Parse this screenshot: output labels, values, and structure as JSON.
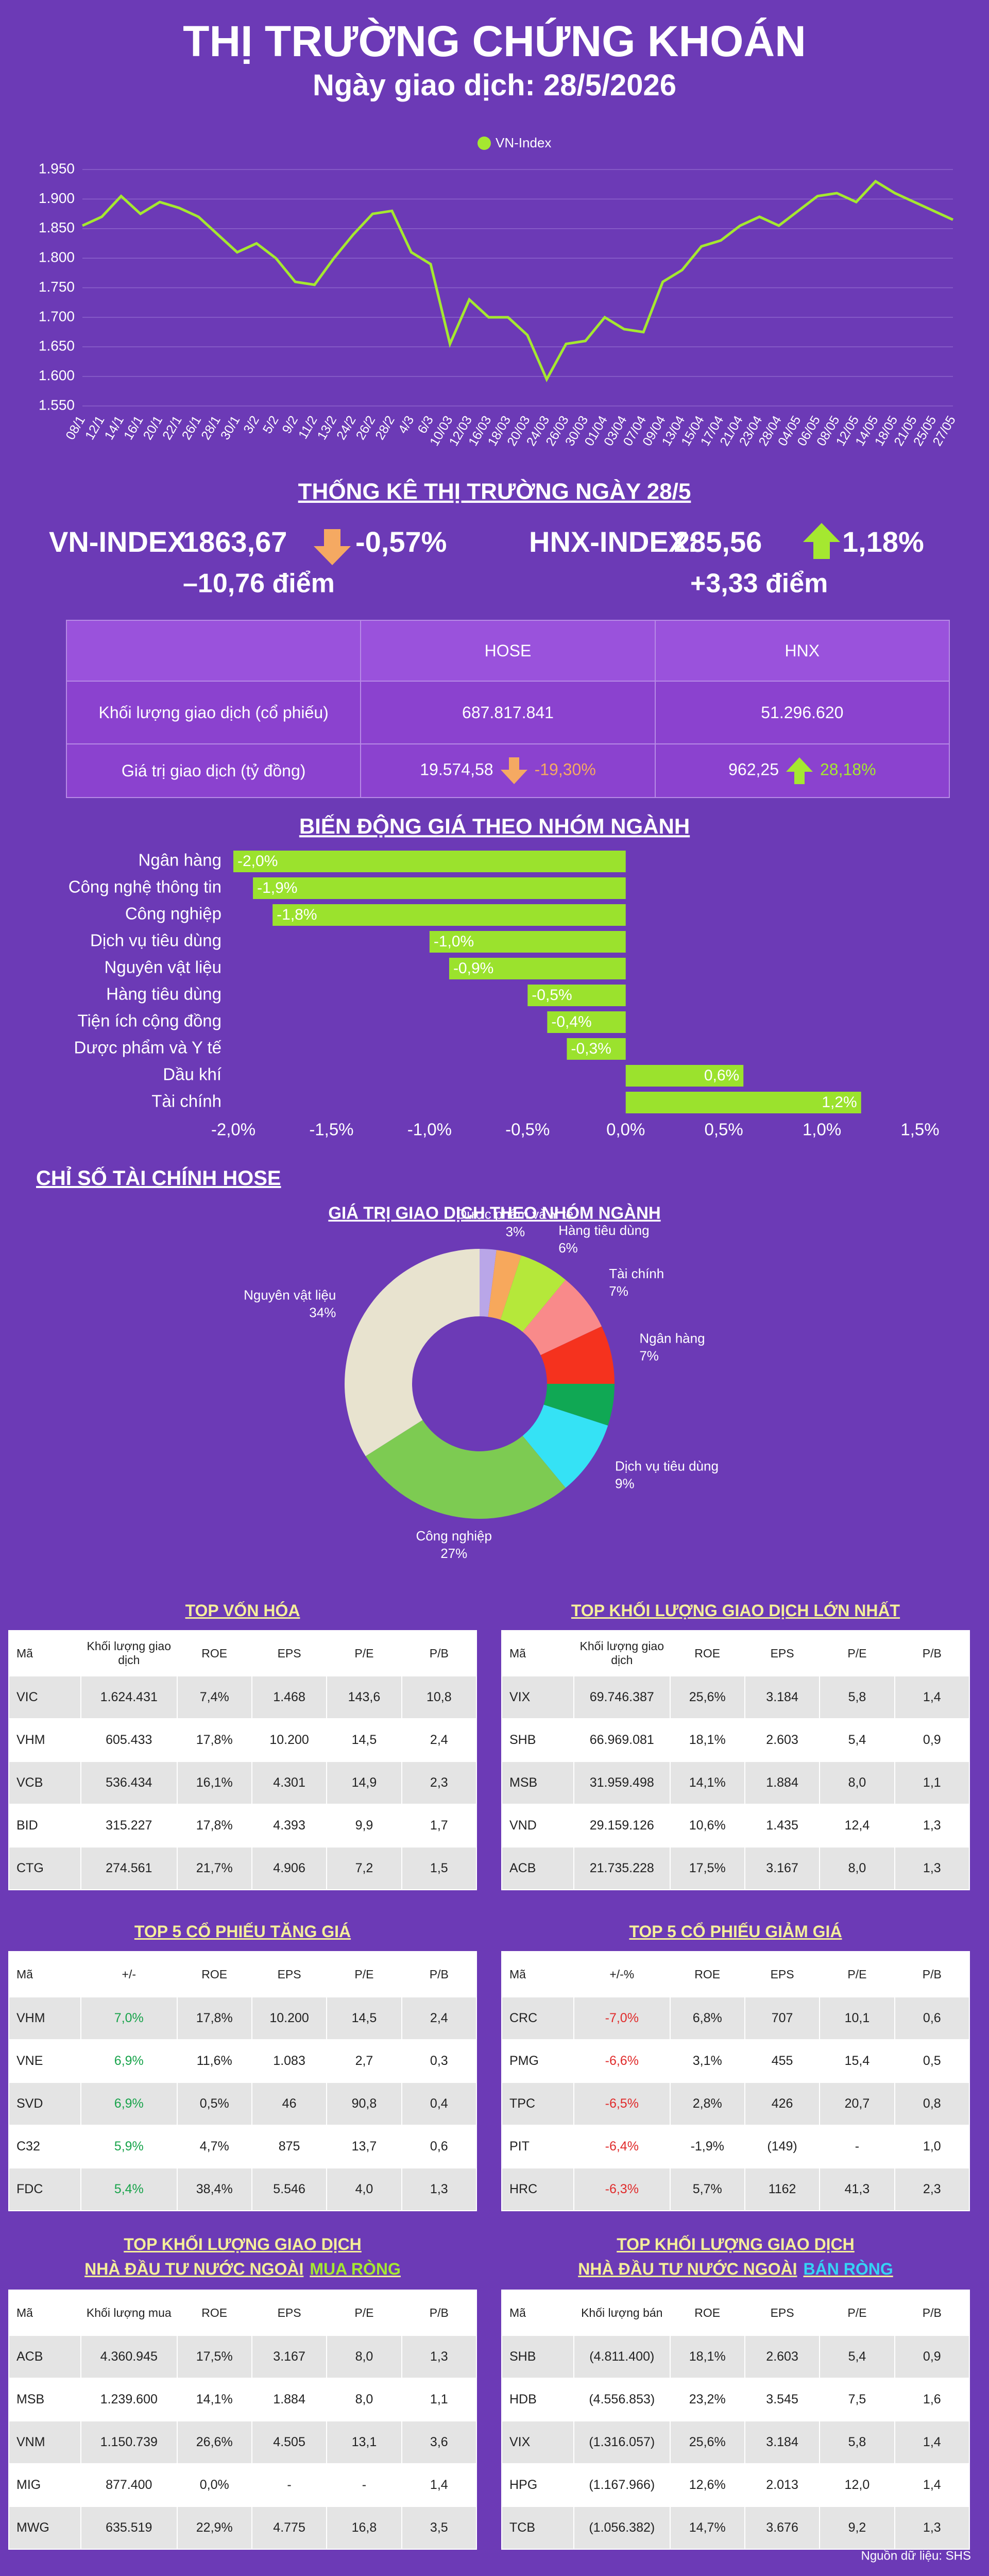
{
  "header": {
    "title": "THỊ TRƯỜNG CHỨNG KHOÁN",
    "subtitle": "Ngày giao dịch: 28/5/2026"
  },
  "chart_data": [
    {
      "type": "line",
      "categories": [
        "08/1",
        "12/1",
        "14/1",
        "16/1",
        "20/1",
        "22/1",
        "26/1",
        "28/1",
        "30/1",
        "3/2",
        "5/2",
        "9/2",
        "11/2",
        "13/2",
        "24/2",
        "26/2",
        "28/2",
        "4/3",
        "6/3",
        "10/03",
        "12/03",
        "16/03",
        "18/03",
        "20/03",
        "24/03",
        "26/03",
        "30/03",
        "01/04",
        "03/04",
        "07/04",
        "09/04",
        "13/04",
        "15/04",
        "17/04",
        "21/04",
        "23/04",
        "28/04",
        "04/05",
        "06/05",
        "08/05",
        "12/05",
        "14/05",
        "18/05",
        "21/05",
        "25/05",
        "27/05"
      ],
      "series": [
        {
          "name": "VN-Index",
          "color": "#a5e830",
          "values": [
            1855,
            1870,
            1905,
            1875,
            1895,
            1885,
            1870,
            1840,
            1810,
            1825,
            1800,
            1760,
            1755,
            1800,
            1840,
            1875,
            1880,
            1810,
            1790,
            1655,
            1730,
            1700,
            1700,
            1670,
            1595,
            1655,
            1660,
            1700,
            1680,
            1675,
            1760,
            1780,
            1820,
            1830,
            1855,
            1870,
            1855,
            1880,
            1905,
            1910,
            1895,
            1930,
            1910,
            1895,
            1880,
            1865
          ]
        }
      ],
      "ylim": [
        1550,
        1950
      ],
      "yticks": [
        {
          "value": 1550,
          "label": "1.550"
        },
        {
          "value": 1600,
          "label": "1.600"
        },
        {
          "value": 1650,
          "label": "1.650"
        },
        {
          "value": 1700,
          "label": "1.700"
        },
        {
          "value": 1750,
          "label": "1.750"
        },
        {
          "value": 1800,
          "label": "1.800"
        },
        {
          "value": 1850,
          "label": "1.850"
        },
        {
          "value": 1900,
          "label": "1.900"
        },
        {
          "value": 1950,
          "label": "1.950"
        }
      ],
      "grid": true,
      "legend": "top"
    },
    {
      "type": "bar",
      "orientation": "horizontal",
      "title": "BIẾN ĐỘNG GIÁ THEO NHÓM NGÀNH",
      "categories": [
        "Ngân hàng",
        "Công nghệ thông tin",
        "Công nghiệp",
        "Dịch vụ tiêu dùng",
        "Nguyên vật liệu",
        "Hàng tiêu dùng",
        "Tiện ích cộng đồng",
        "Dược phẩm và Y tế",
        "Dầu khí",
        "Tài chính"
      ],
      "values": [
        -2.0,
        -1.9,
        -1.8,
        -1.0,
        -0.9,
        -0.5,
        -0.4,
        -0.3,
        0.6,
        1.2
      ],
      "value_labels": [
        "-2,0%",
        "-1,9%",
        "-1,8%",
        "-1,0%",
        "-0,9%",
        "-0,5%",
        "-0,4%",
        "-0,3%",
        "0,6%",
        "1,2%"
      ],
      "color": "#9be22d",
      "xlim": [
        -2,
        1.5
      ],
      "xticks": [
        {
          "value": -2,
          "label": "-2,0%"
        },
        {
          "value": -1.5,
          "label": "-1,5%"
        },
        {
          "value": -1,
          "label": "-1,0%"
        },
        {
          "value": -0.5,
          "label": "-0,5%"
        },
        {
          "value": 0,
          "label": "0,0%"
        },
        {
          "value": 0.5,
          "label": "0,5%"
        },
        {
          "value": 1,
          "label": "1,0%"
        },
        {
          "value": 1.5,
          "label": "1,5%"
        }
      ]
    },
    {
      "type": "pie",
      "donut": true,
      "title": "GIÁ TRỊ GIAO DỊCH THEO NHÓM NGÀNH",
      "categories": [
        null,
        "Dược phẩm và Y tế",
        "Hàng tiêu dùng",
        "Tài chính",
        "Ngân hàng",
        null,
        "Dịch vụ tiêu dùng",
        "Công nghiệp",
        "Nguyên vật liệu"
      ],
      "values": [
        2,
        3,
        6,
        7,
        7,
        5,
        9,
        27,
        34
      ],
      "value_labels": [
        null,
        "3%",
        "6%",
        "7%",
        "7%",
        null,
        "9%",
        "27%",
        "34%"
      ],
      "colors": [
        "#b9a6e8",
        "#f7a85c",
        "#b5e83a",
        "#f98a8a",
        "#f5321e",
        "#10a854",
        "#35e2f5",
        "#7dcb52",
        "#e8e3cf"
      ]
    }
  ],
  "stats": {
    "title": "THỐNG KÊ THỊ TRƯỜNG NGÀY 28/5",
    "vn": {
      "label": "VN-INDEX:",
      "value": "1863,67",
      "change": "-0,57%",
      "points": "–10,76 điểm"
    },
    "hnx": {
      "label": "HNX-INDEX:",
      "value": "285,56",
      "change": "1,18%",
      "points": "+3,33 điểm"
    }
  },
  "market_table": {
    "columns": [
      "HOSE",
      "HNX"
    ],
    "rows": [
      {
        "label": "Khối lượng giao dịch (cổ phiếu)",
        "hose": "687.817.841",
        "hnx": "51.296.620"
      },
      {
        "label": "Giá trị giao dịch (tỷ đồng)",
        "hose": "19.574,58",
        "hose_change": "-19,30%",
        "hnx": "962,25",
        "hnx_change": "28,18%"
      }
    ]
  },
  "section_title": "CHỈ SỐ TÀI CHÍNH HOSE",
  "tables": [
    {
      "title": "TOP VỐN HÓA",
      "columns": [
        "Mã",
        "Khối lượng giao dịch",
        "ROE",
        "EPS",
        "P/E",
        "P/B"
      ],
      "rows": [
        [
          "VIC",
          "1.624.431",
          "7,4%",
          "1.468",
          "143,6",
          "10,8"
        ],
        [
          "VHM",
          "605.433",
          "17,8%",
          "10.200",
          "14,5",
          "2,4"
        ],
        [
          "VCB",
          "536.434",
          "16,1%",
          "4.301",
          "14,9",
          "2,3"
        ],
        [
          "BID",
          "315.227",
          "17,8%",
          "4.393",
          "9,9",
          "1,7"
        ],
        [
          "CTG",
          "274.561",
          "21,7%",
          "4.906",
          "7,2",
          "1,5"
        ]
      ]
    },
    {
      "title": "TOP KHỐI LƯỢNG GIAO DỊCH LỚN NHẤT",
      "columns": [
        "Mã",
        "Khối lượng giao dịch",
        "ROE",
        "EPS",
        "P/E",
        "P/B"
      ],
      "rows": [
        [
          "VIX",
          "69.746.387",
          "25,6%",
          "3.184",
          "5,8",
          "1,4"
        ],
        [
          "SHB",
          "66.969.081",
          "18,1%",
          "2.603",
          "5,4",
          "0,9"
        ],
        [
          "MSB",
          "31.959.498",
          "14,1%",
          "1.884",
          "8,0",
          "1,1"
        ],
        [
          "VND",
          "29.159.126",
          "10,6%",
          "1.435",
          "12,4",
          "1,3"
        ],
        [
          "ACB",
          "21.735.228",
          "17,5%",
          "3.167",
          "8,0",
          "1,3"
        ]
      ]
    },
    {
      "title": "TOP 5 CỔ PHIẾU TĂNG GIÁ",
      "value_color": "#17a34a",
      "columns": [
        "Mã",
        "+/-",
        "ROE",
        "EPS",
        "P/E",
        "P/B"
      ],
      "rows": [
        [
          "VHM",
          "7,0%",
          "17,8%",
          "10.200",
          "14,5",
          "2,4"
        ],
        [
          "VNE",
          "6,9%",
          "11,6%",
          "1.083",
          "2,7",
          "0,3"
        ],
        [
          "SVD",
          "6,9%",
          "0,5%",
          "46",
          "90,8",
          "0,4"
        ],
        [
          "C32",
          "5,9%",
          "4,7%",
          "875",
          "13,7",
          "0,6"
        ],
        [
          "FDC",
          "5,4%",
          "38,4%",
          "5.546",
          "4,0",
          "1,3"
        ]
      ]
    },
    {
      "title": "TOP 5 CỔ PHIẾU GIẢM GIÁ",
      "value_color": "#e02b2b",
      "columns": [
        "Mã",
        "+/-%",
        "ROE",
        "EPS",
        "P/E",
        "P/B"
      ],
      "rows": [
        [
          "CRC",
          "-7,0%",
          "6,8%",
          "707",
          "10,1",
          "0,6"
        ],
        [
          "PMG",
          "-6,6%",
          "3,1%",
          "455",
          "15,4",
          "0,5"
        ],
        [
          "TPC",
          "-6,5%",
          "2,8%",
          "426",
          "20,7",
          "0,8"
        ],
        [
          "PIT",
          "-6,4%",
          "-1,9%",
          "(149)",
          "-",
          "1,0"
        ],
        [
          "HRC",
          "-6,3%",
          "5,7%",
          "1162",
          "41,3",
          "2,3"
        ]
      ]
    },
    {
      "title": "TOP KHỐI LƯỢNG GIAO DỊCH",
      "subtitle": "NHÀ ĐẦU TƯ NƯỚC NGOÀI",
      "highlight": "MUA RÒNG",
      "highlight_color": "#a5e830",
      "columns": [
        "Mã",
        "Khối lượng mua",
        "ROE",
        "EPS",
        "P/E",
        "P/B"
      ],
      "rows": [
        [
          "ACB",
          "4.360.945",
          "17,5%",
          "3.167",
          "8,0",
          "1,3"
        ],
        [
          "MSB",
          "1.239.600",
          "14,1%",
          "1.884",
          "8,0",
          "1,1"
        ],
        [
          "VNM",
          "1.150.739",
          "26,6%",
          "4.505",
          "13,1",
          "3,6"
        ],
        [
          "MIG",
          "877.400",
          "0,0%",
          "-",
          "-",
          "1,4"
        ],
        [
          "MWG",
          "635.519",
          "22,9%",
          "4.775",
          "16,8",
          "3,5"
        ]
      ]
    },
    {
      "title": "TOP KHỐI LƯỢNG GIAO DỊCH",
      "subtitle": "NHÀ ĐẦU TƯ NƯỚC NGOÀI",
      "highlight": "BÁN RÒNG",
      "highlight_color": "#35d3f5",
      "columns": [
        "Mã",
        "Khối lượng bán",
        "ROE",
        "EPS",
        "P/E",
        "P/B"
      ],
      "rows": [
        [
          "SHB",
          "(4.811.400)",
          "18,1%",
          "2.603",
          "5,4",
          "0,9"
        ],
        [
          "HDB",
          "(4.556.853)",
          "23,2%",
          "3.545",
          "7,5",
          "1,6"
        ],
        [
          "VIX",
          "(1.316.057)",
          "25,6%",
          "3.184",
          "5,8",
          "1,4"
        ],
        [
          "HPG",
          "(1.167.966)",
          "12,6%",
          "2.013",
          "12,0",
          "1,4"
        ],
        [
          "TCB",
          "(1.056.382)",
          "14,7%",
          "3.676",
          "9,2",
          "1,3"
        ]
      ]
    }
  ],
  "source": "Nguồn dữ liệu: SHS"
}
